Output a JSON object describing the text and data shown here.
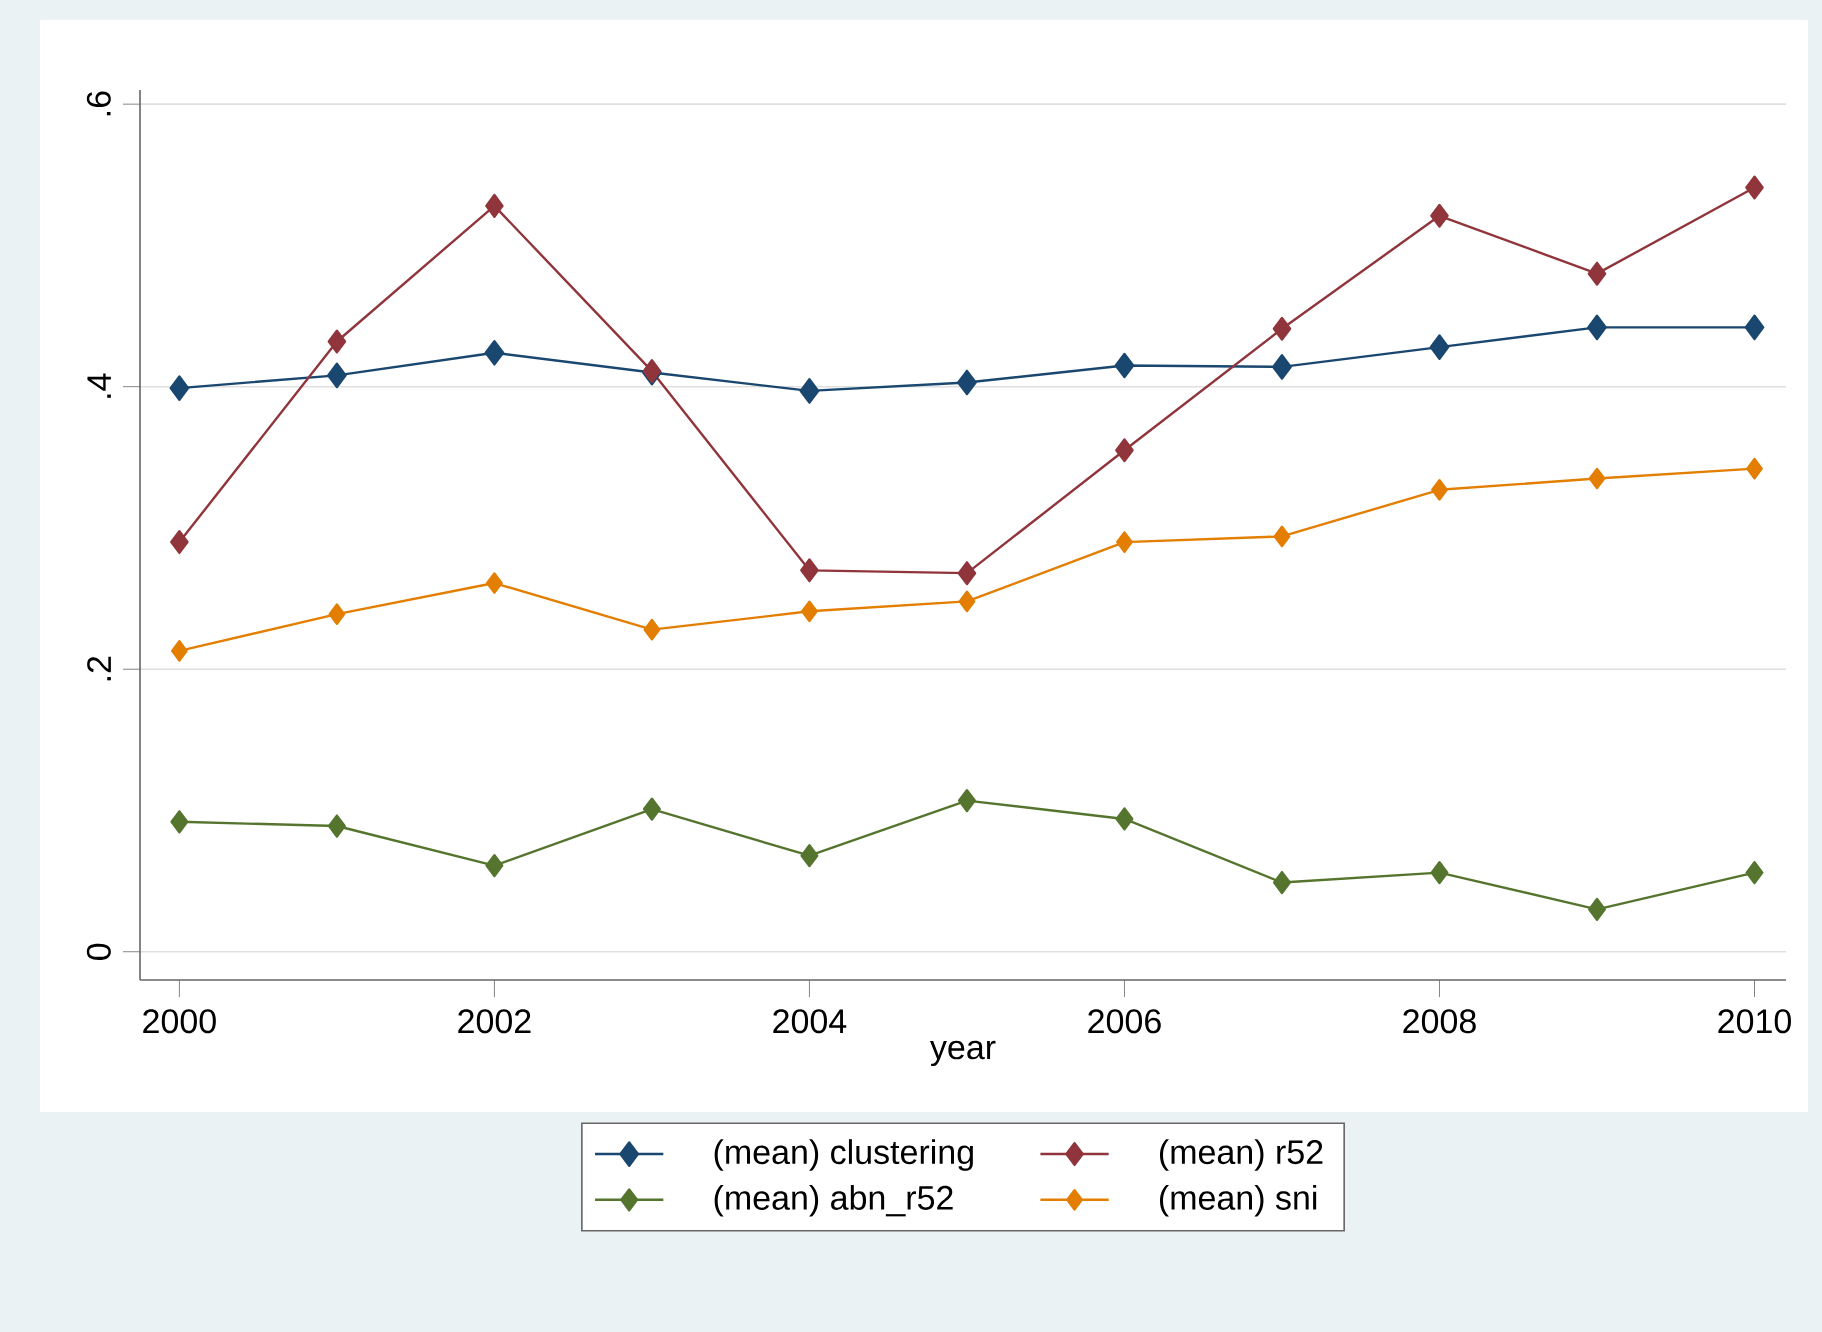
{
  "chart_data": {
    "type": "line",
    "xlabel": "year",
    "x": [
      2000,
      2001,
      2002,
      2003,
      2004,
      2005,
      2006,
      2007,
      2008,
      2009,
      2010
    ],
    "series": [
      {
        "name": "(mean) clustering",
        "color": "#1a476f",
        "values": [
          0.399,
          0.408,
          0.424,
          0.41,
          0.397,
          0.403,
          0.415,
          0.414,
          0.428,
          0.442,
          0.442
        ]
      },
      {
        "name": "(mean) r52",
        "color": "#90353b",
        "values": [
          0.29,
          0.432,
          0.528,
          0.411,
          0.27,
          0.268,
          0.355,
          0.441,
          0.521,
          0.48,
          0.541
        ]
      },
      {
        "name": "(mean) abn_r52",
        "color": "#55752f",
        "values": [
          0.092,
          0.089,
          0.061,
          0.101,
          0.068,
          0.107,
          0.094,
          0.049,
          0.056,
          0.03,
          0.056
        ]
      },
      {
        "name": "(mean) sni",
        "color": "#e37e00",
        "values": [
          0.213,
          0.239,
          0.261,
          0.228,
          0.241,
          0.248,
          0.29,
          0.294,
          0.327,
          0.335,
          0.342
        ]
      }
    ],
    "xlim": [
      1999.75,
      2010.2
    ],
    "ylim": [
      -0.02,
      0.61
    ],
    "xticks": [
      2000,
      2002,
      2004,
      2006,
      2008,
      2010
    ],
    "yticks": [
      {
        "value": 0,
        "label": "0"
      },
      {
        "value": 0.2,
        "label": ".2"
      },
      {
        "value": 0.4,
        "label": ".4"
      },
      {
        "value": 0.6,
        "label": ".6"
      }
    ],
    "grid": "y",
    "legend": "bottom",
    "marker": "diamond",
    "line_style": "solid"
  }
}
